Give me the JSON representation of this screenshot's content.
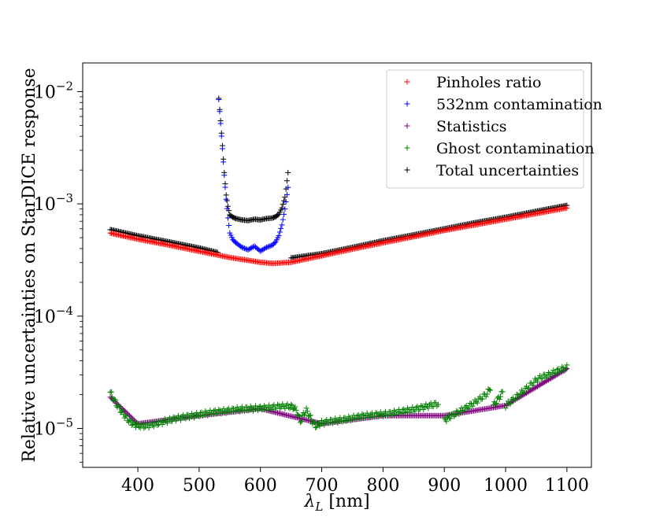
{
  "chart_data": {
    "type": "scatter",
    "title": "",
    "xlabel": "λ_L [nm]",
    "xlabel_main": "λ",
    "xlabel_sub": "L",
    "xlabel_unit": " [nm]",
    "ylabel": "Relative uncertainties on StarDICE response",
    "xlim": [
      310,
      1140
    ],
    "ylim": [
      4.5e-06,
      0.018
    ],
    "yscale": "log",
    "grid": false,
    "legend_position": "top-right",
    "marker": "+",
    "x_ticks": [
      400,
      500,
      600,
      700,
      800,
      900,
      1000,
      1100
    ],
    "x_tick_labels": [
      "400",
      "500",
      "600",
      "700",
      "800",
      "900",
      "1000",
      "1100"
    ],
    "y_ticks": [
      1e-05,
      0.0001,
      0.001,
      0.01
    ],
    "y_tick_labels": [
      {
        "base": "10",
        "exp": "−5"
      },
      {
        "base": "10",
        "exp": "−4"
      },
      {
        "base": "10",
        "exp": "−3"
      },
      {
        "base": "10",
        "exp": "−2"
      }
    ],
    "series": [
      {
        "name": "Pinholes ratio",
        "color": "#ff0000",
        "x": [
          355,
          380,
          400,
          450,
          500,
          550,
          600,
          620,
          650,
          700,
          750,
          800,
          850,
          900,
          950,
          1000,
          1050,
          1100
        ],
        "y": [
          0.00055,
          0.000512,
          0.000485,
          0.00043,
          0.000378,
          0.000333,
          0.000302,
          0.000295,
          0.000302,
          0.000345,
          0.000395,
          0.00045,
          0.00051,
          0.00058,
          0.00065,
          0.00073,
          0.00082,
          0.00092
        ]
      },
      {
        "name": "532nm contamination",
        "color": "#0000ff",
        "x": [
          532,
          535,
          538,
          541,
          544,
          547,
          550,
          555,
          560,
          570,
          580,
          590,
          600,
          610,
          620,
          625,
          630,
          635,
          640,
          645
        ],
        "y": [
          0.0085,
          0.0052,
          0.0031,
          0.0018,
          0.0011,
          0.00075,
          0.00055,
          0.00048,
          0.00045,
          0.00041,
          0.00039,
          0.00042,
          0.00038,
          0.00041,
          0.00043,
          0.00046,
          0.00052,
          0.00065,
          0.0009,
          0.0014
        ]
      },
      {
        "name": "Statistics",
        "color": "#800080",
        "x": [
          355,
          400,
          500,
          600,
          700,
          800,
          900,
          1000,
          1100
        ],
        "y": [
          1.9e-05,
          1.1e-05,
          1.3e-05,
          1.5e-05,
          1.1e-05,
          1.3e-05,
          1.3e-05,
          1.6e-05,
          3.4e-05
        ]
      },
      {
        "name": "Ghost contamination",
        "color": "#008000",
        "x": [
          355,
          360,
          365,
          370,
          375,
          380,
          385,
          390,
          395,
          400,
          410,
          420,
          430,
          440,
          450,
          460,
          470,
          480,
          490,
          500,
          510,
          520,
          530,
          540,
          550,
          560,
          570,
          580,
          590,
          600,
          610,
          620,
          630,
          640,
          650,
          655,
          660,
          665,
          670,
          675,
          680,
          685,
          690,
          695,
          700,
          710,
          720,
          730,
          740,
          750,
          760,
          770,
          780,
          790,
          800,
          810,
          820,
          830,
          840,
          850,
          860,
          870,
          880,
          890,
          900,
          905,
          910,
          920,
          930,
          940,
          950,
          960,
          970,
          975,
          980,
          985,
          990,
          995,
          1000,
          1010,
          1020,
          1030,
          1040,
          1050,
          1060,
          1070,
          1080,
          1090,
          1100
        ],
        "y": [
          2.1e-05,
          1.85e-05,
          1.65e-05,
          1.5e-05,
          1.38e-05,
          1.27e-05,
          1.18e-05,
          1.12e-05,
          1.08e-05,
          1.06e-05,
          1.05e-05,
          1.07e-05,
          1.1e-05,
          1.14e-05,
          1.18e-05,
          1.22e-05,
          1.25e-05,
          1.28e-05,
          1.3e-05,
          1.33e-05,
          1.36e-05,
          1.39e-05,
          1.41e-05,
          1.43e-05,
          1.45e-05,
          1.47e-05,
          1.49e-05,
          1.5e-05,
          1.51e-05,
          1.52e-05,
          1.53e-05,
          1.55e-05,
          1.57e-05,
          1.58e-05,
          1.57e-05,
          1.53e-05,
          1.4e-05,
          1.15e-05,
          1.33e-05,
          1.45e-05,
          1.3e-05,
          1.15e-05,
          1.05e-05,
          1.09e-05,
          1.12e-05,
          1.15e-05,
          1.17e-05,
          1.19e-05,
          1.21e-05,
          1.24e-05,
          1.27e-05,
          1.3e-05,
          1.31e-05,
          1.33e-05,
          1.34e-05,
          1.36e-05,
          1.39e-05,
          1.42e-05,
          1.45e-05,
          1.48e-05,
          1.52e-05,
          1.57e-05,
          1.62e-05,
          1.66e-05,
          1.18e-05,
          1.23e-05,
          1.28e-05,
          1.37e-05,
          1.47e-05,
          1.58e-05,
          1.71e-05,
          1.87e-05,
          2.05e-05,
          2.3e-05,
          1.6e-05,
          1.75e-05,
          1.9e-05,
          2.1e-05,
          1.6e-05,
          1.77e-05,
          1.96e-05,
          2.18e-05,
          2.43e-05,
          2.7e-05,
          2.9e-05,
          3e-05,
          3.18e-05,
          3.35e-05,
          3.5e-05
        ]
      },
      {
        "name": "Total uncertainties",
        "color": "#000000",
        "x": [
          355,
          380,
          400,
          450,
          500,
          530,
          532,
          535,
          538,
          541,
          544,
          547,
          550,
          555,
          560,
          570,
          580,
          590,
          600,
          610,
          620,
          625,
          630,
          635,
          640,
          645,
          650,
          700,
          750,
          800,
          850,
          900,
          950,
          1000,
          1050,
          1100
        ],
        "y": [
          0.00059,
          0.00055,
          0.00052,
          0.00046,
          0.000405,
          0.00037,
          0.0087,
          0.0055,
          0.0033,
          0.0019,
          0.0012,
          0.00095,
          0.0008,
          0.00076,
          0.00074,
          0.00072,
          0.00071,
          0.00073,
          0.00072,
          0.00074,
          0.00075,
          0.00077,
          0.00081,
          0.00092,
          0.00115,
          0.0019,
          0.00033,
          0.00036,
          0.00041,
          0.00047,
          0.00053,
          0.0006,
          0.00068,
          0.00076,
          0.00086,
          0.00097
        ]
      }
    ]
  }
}
